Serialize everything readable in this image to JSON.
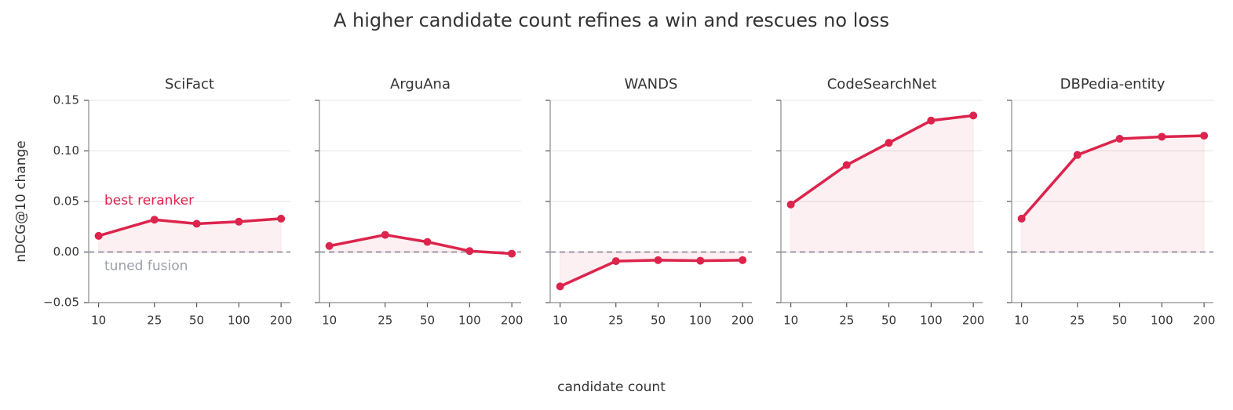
{
  "title": "A higher candidate count refines a win and rescues no loss",
  "xlabel": "candidate count",
  "ylabel": "nDCG@10 change",
  "chart_data": [
    {
      "type": "line",
      "title": "SciFact",
      "xscale": "log",
      "x": [
        10,
        25,
        50,
        100,
        200
      ],
      "values": [
        0.016,
        0.032,
        0.028,
        0.03,
        0.033
      ],
      "color": "#dc244c",
      "xlim": [
        8.5,
        233
      ],
      "xticks": [
        10,
        25,
        50,
        100,
        200
      ],
      "ylim": [
        -0.05,
        0.15
      ],
      "yticks": [
        {
          "value": -0.05,
          "label": "−0.05"
        },
        {
          "value": 0,
          "label": "0.00"
        },
        {
          "value": 0.05,
          "label": "0.05"
        },
        {
          "value": 0.1,
          "label": "0.10"
        },
        {
          "value": 0.15,
          "label": "0.15"
        }
      ],
      "grid": true,
      "hline": 0,
      "hline_color": "#9aa0a8",
      "annotations": [
        "best reranker",
        "tuned fusion"
      ]
    },
    {
      "type": "line",
      "title": "ArguAna",
      "xscale": "log",
      "x": [
        10,
        25,
        50,
        100,
        200
      ],
      "values": [
        0.006,
        0.017,
        0.01,
        0.001,
        -0.0016
      ],
      "color": "#dc244c",
      "xlim": [
        8.5,
        233
      ],
      "xticks": [
        10,
        25,
        50,
        100,
        200
      ],
      "ylim": [
        -0.05,
        0.15
      ],
      "yticks": [
        -0.05,
        0,
        0.05,
        0.1,
        0.15
      ],
      "grid": true,
      "hline": 0,
      "hline_color": "#9aa0a8"
    },
    {
      "type": "line",
      "title": "WANDS",
      "xscale": "log",
      "x": [
        10,
        25,
        50,
        100,
        200
      ],
      "values": [
        -0.034,
        -0.009,
        -0.008,
        -0.0086,
        -0.008
      ],
      "color": "#dc244c",
      "xlim": [
        8.5,
        233
      ],
      "xticks": [
        10,
        25,
        50,
        100,
        200
      ],
      "ylim": [
        -0.05,
        0.15
      ],
      "yticks": [
        -0.05,
        0,
        0.05,
        0.1,
        0.15
      ],
      "grid": true,
      "hline": 0,
      "hline_color": "#9aa0a8"
    },
    {
      "type": "line",
      "title": "CodeSearchNet",
      "xscale": "log",
      "x": [
        10,
        25,
        50,
        100,
        200
      ],
      "values": [
        0.047,
        0.086,
        0.108,
        0.13,
        0.135
      ],
      "color": "#dc244c",
      "xlim": [
        8.5,
        233
      ],
      "xticks": [
        10,
        25,
        50,
        100,
        200
      ],
      "ylim": [
        -0.05,
        0.15
      ],
      "yticks": [
        -0.05,
        0,
        0.05,
        0.1,
        0.15
      ],
      "grid": true,
      "hline": 0,
      "hline_color": "#9aa0a8"
    },
    {
      "type": "line",
      "title": "DBPedia-entity",
      "xscale": "log",
      "x": [
        10,
        25,
        50,
        100,
        200
      ],
      "values": [
        0.033,
        0.096,
        0.112,
        0.114,
        0.115
      ],
      "color": "#dc244c",
      "xlim": [
        8.5,
        233
      ],
      "xticks": [
        10,
        25,
        50,
        100,
        200
      ],
      "ylim": [
        -0.05,
        0.15
      ],
      "yticks": [
        -0.05,
        0,
        0.05,
        0.1,
        0.15
      ],
      "grid": true,
      "hline": 0,
      "hline_color": "#9aa0a8"
    }
  ]
}
